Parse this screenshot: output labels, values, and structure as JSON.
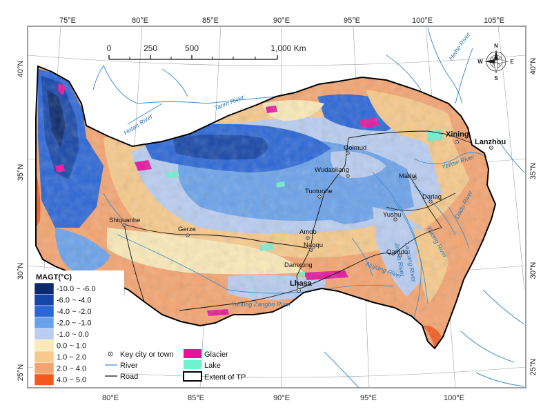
{
  "legend": {
    "title": "MAGT(°C)",
    "classes": [
      {
        "label": "-10.0 ~ -6.0",
        "color": "#0b2a6e"
      },
      {
        "label": "-6.0 ~ -4.0",
        "color": "#1646a8"
      },
      {
        "label": "-4.0 ~ -2.0",
        "color": "#2a66d6"
      },
      {
        "label": "-2.0 ~ -1.0",
        "color": "#6aa2ea"
      },
      {
        "label": "-1.0 ~ 0.0",
        "color": "#b9cdf1"
      },
      {
        "label": "0.0 ~ 1.0",
        "color": "#fbeab8"
      },
      {
        "label": "1.0 ~ 2.0",
        "color": "#f7c98a"
      },
      {
        "label": "2.0 ~ 4.0",
        "color": "#f4a470"
      },
      {
        "label": "4.0 ~ 5.0",
        "color": "#f25a1d"
      }
    ],
    "symbols": {
      "city": "Key city or town",
      "river": "River",
      "road": "Road",
      "glacier": "Glacier",
      "lake": "Lake",
      "extent": "Extent of TP"
    },
    "symbol_colors": {
      "glacier": "#e2149c",
      "lake": "#6ff0cf",
      "river": "#3f8fd0",
      "road": "#111111"
    }
  },
  "scalebar": {
    "ticks": [
      "0",
      "250",
      "500",
      "1,000 Km"
    ]
  },
  "north_arrow": {
    "n": "N",
    "s": "S",
    "e": "E",
    "w": "W"
  },
  "graticule": {
    "top": [
      "75°E",
      "80°E",
      "85°E",
      "90°E",
      "95°E",
      "100°E",
      "105°E"
    ],
    "bottom": [
      "80°E",
      "85°E",
      "90°E",
      "95°E",
      "100°E"
    ],
    "left": [
      "40°N",
      "35°N",
      "30°N",
      "25°N"
    ],
    "right": [
      "40°N",
      "35°N",
      "30°N",
      "25°N"
    ]
  },
  "cities": [
    {
      "name": "Xining",
      "major": true
    },
    {
      "name": "Lanzhou",
      "major": true
    },
    {
      "name": "Lhasa",
      "major": true
    },
    {
      "name": "Golmud"
    },
    {
      "name": "Wudaoliang"
    },
    {
      "name": "Tuotuohe"
    },
    {
      "name": "Madoi"
    },
    {
      "name": "Darlag"
    },
    {
      "name": "Yushu"
    },
    {
      "name": "Shiquanhe"
    },
    {
      "name": "Gerze"
    },
    {
      "name": "Amdo"
    },
    {
      "name": "Nagqu"
    },
    {
      "name": "Qamdo"
    },
    {
      "name": "Damxung"
    }
  ],
  "rivers": [
    {
      "name": "Heihe River"
    },
    {
      "name": "Tarim River"
    },
    {
      "name": "Hotan River"
    },
    {
      "name": "Yellow River"
    },
    {
      "name": "Dadu River"
    },
    {
      "name": "Yalong River"
    },
    {
      "name": "Yarlung Zangbo River"
    },
    {
      "name": "Jinsha River"
    },
    {
      "name": "Lancang River"
    },
    {
      "name": "Nujiang River"
    }
  ]
}
